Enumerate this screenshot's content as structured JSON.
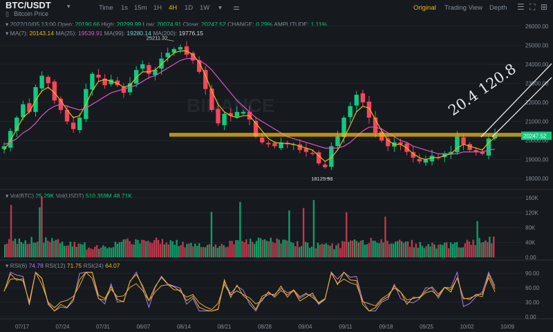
{
  "header": {
    "pair": "BTC/USDT",
    "subtitle": "Bitcoin Price",
    "timeframes": [
      "Time",
      "1s",
      "15m",
      "1H",
      "4H",
      "1D",
      "1W"
    ],
    "active_timeframe": "4H",
    "right_tabs": [
      "Original",
      "Trading View",
      "Depth"
    ],
    "active_tab": "Original"
  },
  "ohlc_row": {
    "date": "2022/10/05 13:00",
    "open_label": "Open:",
    "open": "20190.66",
    "high_label": "High:",
    "high": "20299.99",
    "low_label": "Low:",
    "low": "20074.91",
    "close_label": "Close:",
    "close": "20247.52",
    "change_label": "CHANGE:",
    "change": "0.29%",
    "amplitude_label": "AMPLITUDE:",
    "amplitude": "1.11%"
  },
  "ma_row": {
    "ma7_label": "MA(7):",
    "ma7": "20143.14",
    "ma25_label": "MA(25):",
    "ma25": "19539.91",
    "ma99_label": "MA(99):",
    "ma99": "19280.14",
    "ma200_label": "MA(200):",
    "ma200": "19776.15"
  },
  "vol_row": {
    "vol_btc_label": "Vol(BTC)",
    "vol_btc": "25.29K",
    "vol_usdt_label": "Vol(USDT)",
    "vol_usdt": "510.359M",
    "vol_extra": "48.71K"
  },
  "rsi_row": {
    "rsi6_label": "RSI(6)",
    "rsi6": "74.78",
    "rsi12_label": "RSI(12)",
    "rsi12": "71.75",
    "rsi24_label": "RSI(24)",
    "rsi24": "64.07"
  },
  "annotations": {
    "high_marker": "25211.32",
    "low_marker": "18125.98",
    "current_price": "20247.52",
    "handwritten": "20.4 120.8",
    "watermark": "BINANCE"
  },
  "colors": {
    "up": "#0ecb81",
    "down": "#f6465d",
    "ma7": "#f0b90b",
    "ma25": "#e052c9",
    "ma99": "#6fd5c9",
    "ma200": "#d8dce2",
    "highlight": "#f0b90b"
  },
  "chart_data": {
    "type": "candlestick",
    "x_tick_labels": [
      "07/17",
      "07/24",
      "07/31",
      "08/07",
      "08/14",
      "08/21",
      "08/28",
      "09/04",
      "09/11",
      "09/18",
      "09/25",
      "10/02",
      "10/09"
    ],
    "price_axis": {
      "ticks": [
        26000,
        25000,
        24000,
        23000,
        22000,
        21000,
        20000,
        19000,
        18000
      ],
      "tick_labels": [
        "26000.00",
        "25000.00",
        "24000.00",
        "23000.00",
        "22000.00",
        "21000.00",
        "20000.00",
        "19000.00",
        "18000.00"
      ],
      "range": [
        17500,
        26500
      ]
    },
    "close_series": [
      19700,
      20500,
      21200,
      21900,
      21500,
      22800,
      23400,
      23000,
      22100,
      21600,
      21000,
      20600,
      21200,
      22700,
      23500,
      23300,
      22900,
      23200,
      22900,
      22500,
      23000,
      23700,
      24000,
      23500,
      23700,
      24300,
      24600,
      24800,
      24900,
      24500,
      24200,
      23600,
      22700,
      21600,
      20900,
      21400,
      21300,
      21500,
      21500,
      21100,
      20200,
      19900,
      19800,
      19700,
      19900,
      19800,
      19800,
      19500,
      19400,
      19300,
      18800,
      18600,
      19700,
      20200,
      21200,
      21800,
      22400,
      22000,
      21200,
      20400,
      20000,
      19700,
      19900,
      19800,
      19400,
      19100,
      18900,
      19000,
      19200,
      19100,
      19300,
      19400,
      20200,
      19800,
      19500,
      19400,
      19300,
      20100,
      20300
    ],
    "ma_series": [
      {
        "name": "MA(7)",
        "values": [
          19500,
          20000,
          20600,
          21200,
          21500,
          22100,
          22600,
          22800,
          22500,
          22100,
          21600,
          21200,
          21300,
          21900,
          22600,
          23100,
          23200,
          23100,
          23000,
          22800,
          22900,
          23300,
          23600,
          23600,
          23700,
          24000,
          24300,
          24600,
          24700,
          24700,
          24500,
          24100,
          23400,
          22600,
          21900,
          21500,
          21300,
          21200,
          21300,
          21300,
          20900,
          20500,
          20100,
          19900,
          19850,
          19850,
          19800,
          19700,
          19600,
          19500,
          19200,
          18900,
          19100,
          19500,
          20100,
          20800,
          21500,
          21800,
          21700,
          21100,
          20500,
          20000,
          19800,
          19800,
          19600,
          19300,
          19100,
          19000,
          19100,
          19100,
          19200,
          19300,
          19600,
          19800,
          19700,
          19600,
          19500,
          19900,
          20140
        ]
      },
      {
        "name": "MA(25)",
        "values": [
          19800,
          19900,
          20100,
          20400,
          20600,
          20900,
          21300,
          21600,
          21800,
          21900,
          21800,
          21700,
          21600,
          21700,
          21900,
          22100,
          22300,
          22500,
          22600,
          22700,
          22800,
          22900,
          23100,
          23300,
          23400,
          23600,
          23800,
          24000,
          24200,
          24300,
          24300,
          24200,
          24000,
          23700,
          23300,
          22900,
          22500,
          22100,
          21800,
          21500,
          21200,
          21000,
          20800,
          20600,
          20400,
          20200,
          20100,
          20000,
          19900,
          19800,
          19700,
          19600,
          19600,
          19600,
          19700,
          19900,
          20200,
          20500,
          20700,
          20700,
          20600,
          20400,
          20200,
          20000,
          19900,
          19700,
          19600,
          19500,
          19400,
          19300,
          19300,
          19300,
          19300,
          19400,
          19400,
          19400,
          19400,
          19500,
          19540
        ]
      }
    ],
    "volume_axis": {
      "ticks": [
        0,
        40,
        80,
        120,
        160
      ],
      "tick_labels": [
        "0.00",
        "40K",
        "80K",
        "120K",
        "160K"
      ]
    },
    "rsi_axis": {
      "ticks": [
        0,
        30,
        60,
        90
      ],
      "tick_labels": [
        "0.00",
        "30.00",
        "60.00",
        "90.00"
      ]
    },
    "horizontal_zone": [
      20200,
      20400
    ]
  }
}
